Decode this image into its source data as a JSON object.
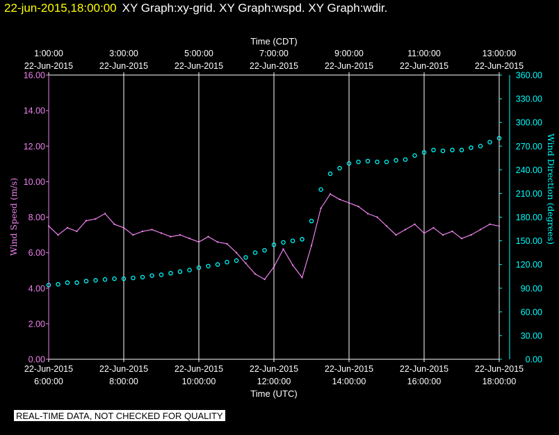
{
  "header": {
    "datetime": "22-jun-2015,18:00:00",
    "title": "XY Graph:xy-grid.  XY Graph:wspd.  XY Graph:wdir."
  },
  "quality_note": "REAL-TIME DATA, NOT CHECKED FOR QUALITY",
  "colors": {
    "wind_speed": "#ee82ee",
    "wind_direction": "#00ffff",
    "grid": "#ffffff",
    "background": "#000000"
  },
  "chart_data": {
    "type": "line",
    "x_top_title": "Time (CDT)",
    "x_bottom_title": "Time (UTC)",
    "x_range_utc_hours": [
      6.0,
      18.0
    ],
    "x_bottom_ticks": [
      {
        "hour": 6,
        "date": "22-Jun-2015",
        "time": "6:00:00"
      },
      {
        "hour": 8,
        "date": "22-Jun-2015",
        "time": "8:00:00"
      },
      {
        "hour": 10,
        "date": "22-Jun-2015",
        "time": "10:00:00"
      },
      {
        "hour": 12,
        "date": "22-Jun-2015",
        "time": "12:00:00"
      },
      {
        "hour": 14,
        "date": "22-Jun-2015",
        "time": "14:00:00"
      },
      {
        "hour": 16,
        "date": "22-Jun-2015",
        "time": "16:00:00"
      },
      {
        "hour": 18,
        "date": "22-Jun-2015",
        "time": "18:00:00"
      }
    ],
    "x_top_ticks": [
      {
        "hour": 6,
        "date": "22-Jun-2015",
        "time": "1:00:00"
      },
      {
        "hour": 8,
        "date": "22-Jun-2015",
        "time": "3:00:00"
      },
      {
        "hour": 10,
        "date": "22-Jun-2015",
        "time": "5:00:00"
      },
      {
        "hour": 12,
        "date": "22-Jun-2015",
        "time": "7:00:00"
      },
      {
        "hour": 14,
        "date": "22-Jun-2015",
        "time": "9:00:00"
      },
      {
        "hour": 16,
        "date": "22-Jun-2015",
        "time": "11:00:00"
      },
      {
        "hour": 18,
        "date": "22-Jun-2015",
        "time": "13:00:00"
      }
    ],
    "y_left": {
      "title": "Wind Speed (m/s)",
      "range": [
        0,
        16
      ],
      "ticks": [
        "0.00",
        "2.00",
        "4.00",
        "6.00",
        "8.00",
        "10.00",
        "12.00",
        "14.00",
        "16.00"
      ]
    },
    "y_right": {
      "title": "Wind Direction (degrees)",
      "range": [
        0,
        360
      ],
      "ticks": [
        "0.00",
        "30.00",
        "60.00",
        "90.00",
        "120.00",
        "150.00",
        "180.00",
        "210.00",
        "240.00",
        "270.00",
        "300.00",
        "330.00",
        "360.00"
      ]
    },
    "grid": "vertical",
    "series": [
      {
        "name": "Wind Speed",
        "style": "line",
        "axis": "left",
        "x_hours": [
          6.0,
          6.25,
          6.5,
          6.75,
          7.0,
          7.25,
          7.5,
          7.75,
          8.0,
          8.25,
          8.5,
          8.75,
          9.0,
          9.25,
          9.5,
          9.75,
          10.0,
          10.25,
          10.5,
          10.75,
          11.0,
          11.25,
          11.5,
          11.75,
          12.0,
          12.25,
          12.5,
          12.75,
          13.0,
          13.25,
          13.5,
          13.75,
          14.0,
          14.25,
          14.5,
          14.75,
          15.0,
          15.25,
          15.5,
          15.75,
          16.0,
          16.25,
          16.5,
          16.75,
          17.0,
          17.25,
          17.5,
          17.75,
          18.0
        ],
        "values": [
          7.5,
          7.0,
          7.4,
          7.2,
          7.8,
          7.9,
          8.2,
          7.6,
          7.4,
          7.0,
          7.2,
          7.3,
          7.1,
          6.9,
          7.0,
          6.8,
          6.6,
          6.9,
          6.6,
          6.5,
          6.0,
          5.4,
          4.8,
          4.5,
          5.2,
          6.2,
          5.3,
          4.6,
          6.4,
          8.5,
          9.3,
          9.0,
          8.8,
          8.6,
          8.2,
          8.0,
          7.5,
          7.0,
          7.3,
          7.6,
          7.1,
          7.4,
          7.0,
          7.2,
          6.8,
          7.0,
          7.3,
          7.6,
          7.5
        ]
      },
      {
        "name": "Wind Direction",
        "style": "markers",
        "axis": "right",
        "x_hours": [
          6.0,
          6.25,
          6.5,
          6.75,
          7.0,
          7.25,
          7.5,
          7.75,
          8.0,
          8.25,
          8.5,
          8.75,
          9.0,
          9.25,
          9.5,
          9.75,
          10.0,
          10.25,
          10.5,
          10.75,
          11.0,
          11.25,
          11.5,
          11.75,
          12.0,
          12.25,
          12.5,
          12.75,
          13.0,
          13.25,
          13.5,
          13.75,
          14.0,
          14.25,
          14.5,
          14.75,
          15.0,
          15.25,
          15.5,
          15.75,
          16.0,
          16.25,
          16.5,
          16.75,
          17.0,
          17.25,
          17.5,
          17.75,
          18.0
        ],
        "values": [
          94,
          95,
          97,
          97,
          99,
          100,
          101,
          102,
          102,
          103,
          104,
          106,
          107,
          109,
          111,
          113,
          116,
          118,
          120,
          123,
          125,
          129,
          135,
          138,
          145,
          148,
          150,
          152,
          175,
          215,
          235,
          242,
          248,
          250,
          251,
          250,
          250,
          252,
          253,
          258,
          262,
          265,
          264,
          265,
          265,
          268,
          270,
          275,
          280
        ]
      }
    ]
  }
}
